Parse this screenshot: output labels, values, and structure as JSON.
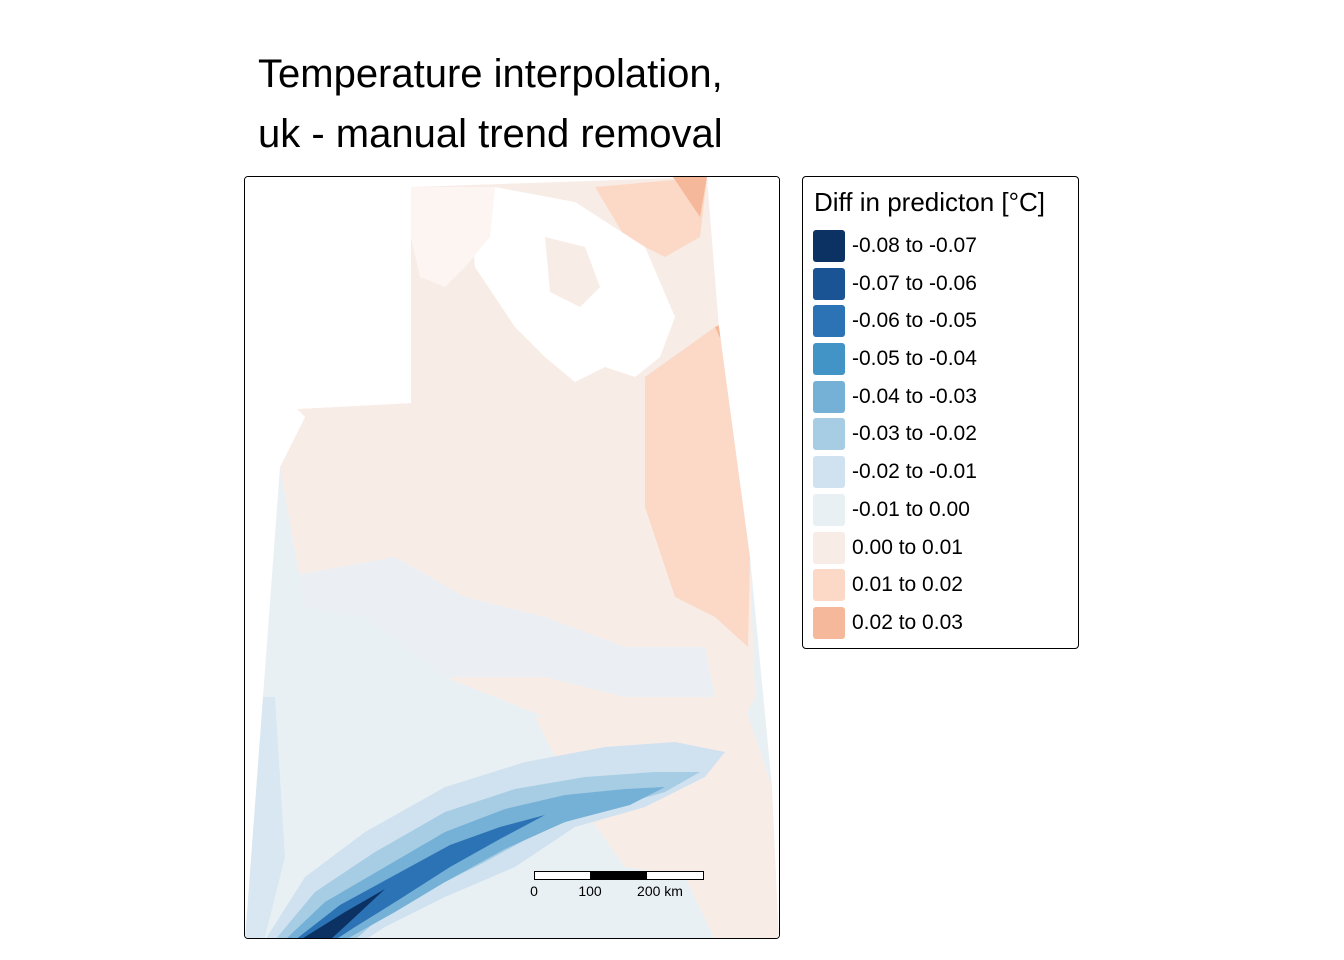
{
  "title": {
    "line1": "Temperature interpolation,",
    "line2": "uk - manual trend removal"
  },
  "legend": {
    "title": "Diff in predicton [°C]",
    "items": [
      {
        "label": "-0.08 to -0.07",
        "color": "#0b3263"
      },
      {
        "label": "-0.07 to -0.06",
        "color": "#1b5494"
      },
      {
        "label": "-0.06 to -0.05",
        "color": "#2b73b5"
      },
      {
        "label": "-0.05 to -0.04",
        "color": "#4293c6"
      },
      {
        "label": "-0.04 to -0.03",
        "color": "#75b0d6"
      },
      {
        "label": "-0.03 to -0.02",
        "color": "#a6cde4"
      },
      {
        "label": "-0.02 to -0.01",
        "color": "#d0e2ef"
      },
      {
        "label": "-0.01 to 0.00",
        "color": "#e9f0f4"
      },
      {
        "label": "0.00 to 0.01",
        "color": "#f8ece7"
      },
      {
        "label": "0.01 to 0.02",
        "color": "#fbd9c6"
      },
      {
        "label": "0.02 to 0.03",
        "color": "#f5b89b"
      }
    ]
  },
  "scalebar": {
    "labels": [
      "0",
      "100",
      "200 km"
    ]
  }
}
